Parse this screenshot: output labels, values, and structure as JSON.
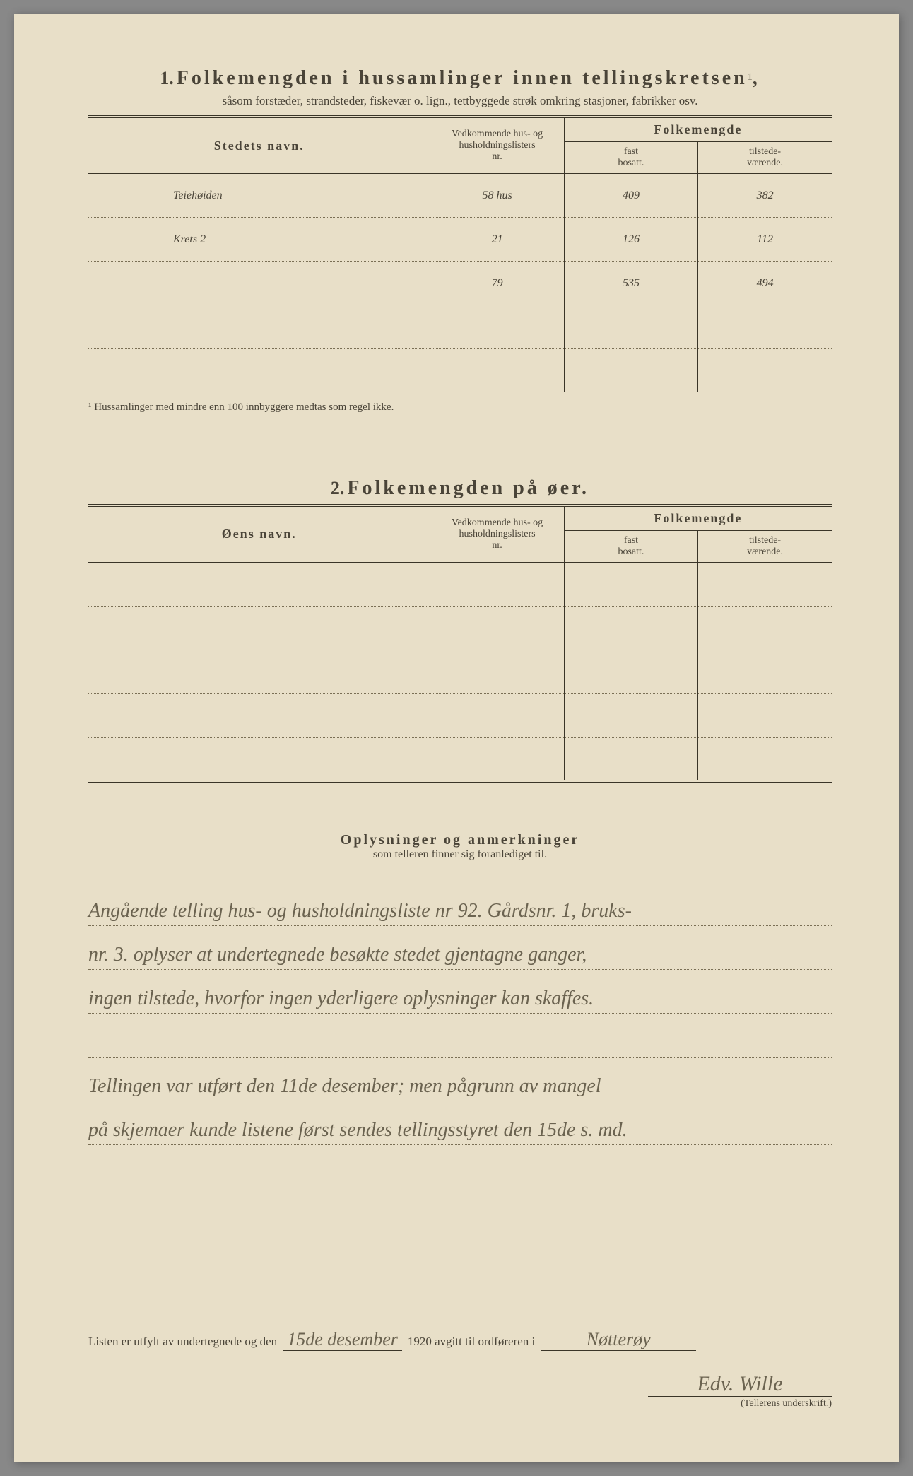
{
  "section1": {
    "num": "1.",
    "title": "Folkemengden i hussamlinger innen tellingskretsen",
    "sup": "1",
    "subtitle": "såsom forstæder, strandsteder, fiskevær o. lign., tettbyggede strøk omkring stasjoner, fabrikker osv.",
    "headers": {
      "name": "Stedets navn.",
      "nr_top": "Vedkommende hus- og",
      "nr_mid": "husholdningslisters",
      "nr_bot": "nr.",
      "folk": "Folkemengde",
      "fast_top": "fast",
      "fast_bot": "bosatt.",
      "til_top": "tilstede-",
      "til_bot": "værende."
    },
    "rows": [
      {
        "name": "Teiehøiden",
        "nr": "58 hus",
        "fast": "409",
        "til": "382"
      },
      {
        "name": "Krets 2",
        "nr": "21",
        "fast": "126",
        "til": "112"
      },
      {
        "name": "",
        "nr": "79",
        "fast": "535",
        "til": "494"
      },
      {
        "name": "",
        "nr": "",
        "fast": "",
        "til": ""
      },
      {
        "name": "",
        "nr": "",
        "fast": "",
        "til": ""
      }
    ],
    "footnote_mark": "¹",
    "footnote": "Hussamlinger med mindre enn 100 innbyggere medtas som regel ikke."
  },
  "section2": {
    "num": "2.",
    "title": "Folkemengden på øer.",
    "headers": {
      "name": "Øens navn.",
      "nr_top": "Vedkommende hus- og",
      "nr_mid": "husholdningslisters",
      "nr_bot": "nr.",
      "folk": "Folkemengde",
      "fast_top": "fast",
      "fast_bot": "bosatt.",
      "til_top": "tilstede-",
      "til_bot": "værende."
    },
    "rows": [
      {
        "name": "",
        "nr": "",
        "fast": "",
        "til": ""
      },
      {
        "name": "",
        "nr": "",
        "fast": "",
        "til": ""
      },
      {
        "name": "",
        "nr": "",
        "fast": "",
        "til": ""
      },
      {
        "name": "",
        "nr": "",
        "fast": "",
        "til": ""
      },
      {
        "name": "",
        "nr": "",
        "fast": "",
        "til": ""
      }
    ]
  },
  "remarks": {
    "title": "Oplysninger og anmerkninger",
    "subtitle": "som telleren finner sig foranlediget til.",
    "lines": [
      "Angående telling hus- og husholdningsliste nr 92. Gårdsnr. 1, bruks-",
      "nr. 3. oplyser at undertegnede besøkte stedet gjentagne ganger,",
      "ingen tilstede, hvorfor ingen yderligere oplysninger kan skaffes.",
      "",
      "Tellingen var utført den 11de desember; men pågrunn av mangel",
      "på skjemaer kunde listene først sendes tellingsstyret den 15de s. md."
    ]
  },
  "signoff": {
    "prefix": "Listen er utfylt av undertegnede og den",
    "date": "15de desember",
    "year": "1920 avgitt til ordføreren i",
    "place": "Nøtterøy",
    "signature": "Edv. Wille",
    "caption": "(Tellerens underskrift.)"
  }
}
